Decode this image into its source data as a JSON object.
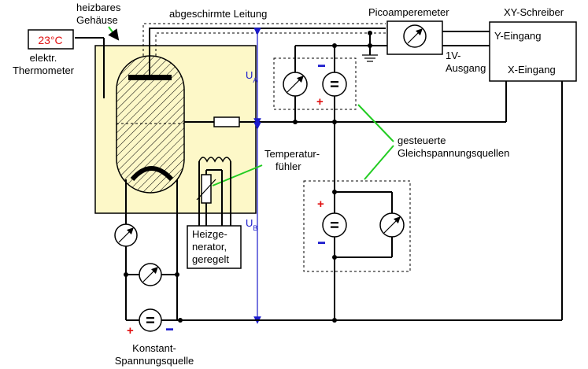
{
  "labels": {
    "heated_housing_line1": "heizbares",
    "heated_housing_line2": "Gehäuse",
    "shielded_cable": "abgeschirmte Leitung",
    "picoammeter": "Picoamperemeter",
    "xy_recorder": "XY-Schreiber",
    "y_input": "Y-Eingang",
    "x_input": "X-Eingang",
    "output_1v_line1": "1V-",
    "output_1v_line2": "Ausgang",
    "thermometer_display": "23°C",
    "thermometer_line1": "elektr.",
    "thermometer_line2": "Thermometer",
    "temp_sensor_line1": "Temperatur-",
    "temp_sensor_line2": "fühler",
    "heat_gen_line1": "Heizge-",
    "heat_gen_line2": "nerator,",
    "heat_gen_line3": "geregelt",
    "controlled_sources_line1": "gesteuerte",
    "controlled_sources_line2": "Gleichspannungsquellen",
    "const_source_line1": "Konstant-",
    "const_source_line2": "Spannungsquelle",
    "ua_main": "U",
    "ua_sub": "A",
    "ub_main": "U",
    "ub_sub": "B",
    "plus": "+",
    "minus": "▬",
    "equals": "="
  },
  "colors": {
    "housing_fill": "#fdf8c8",
    "thermometer_text": "#e01010",
    "plus_color": "#e01010",
    "minus_color": "#1a1acc",
    "annotation_green": "#22cc22",
    "axis_blue": "#1a1acc"
  }
}
